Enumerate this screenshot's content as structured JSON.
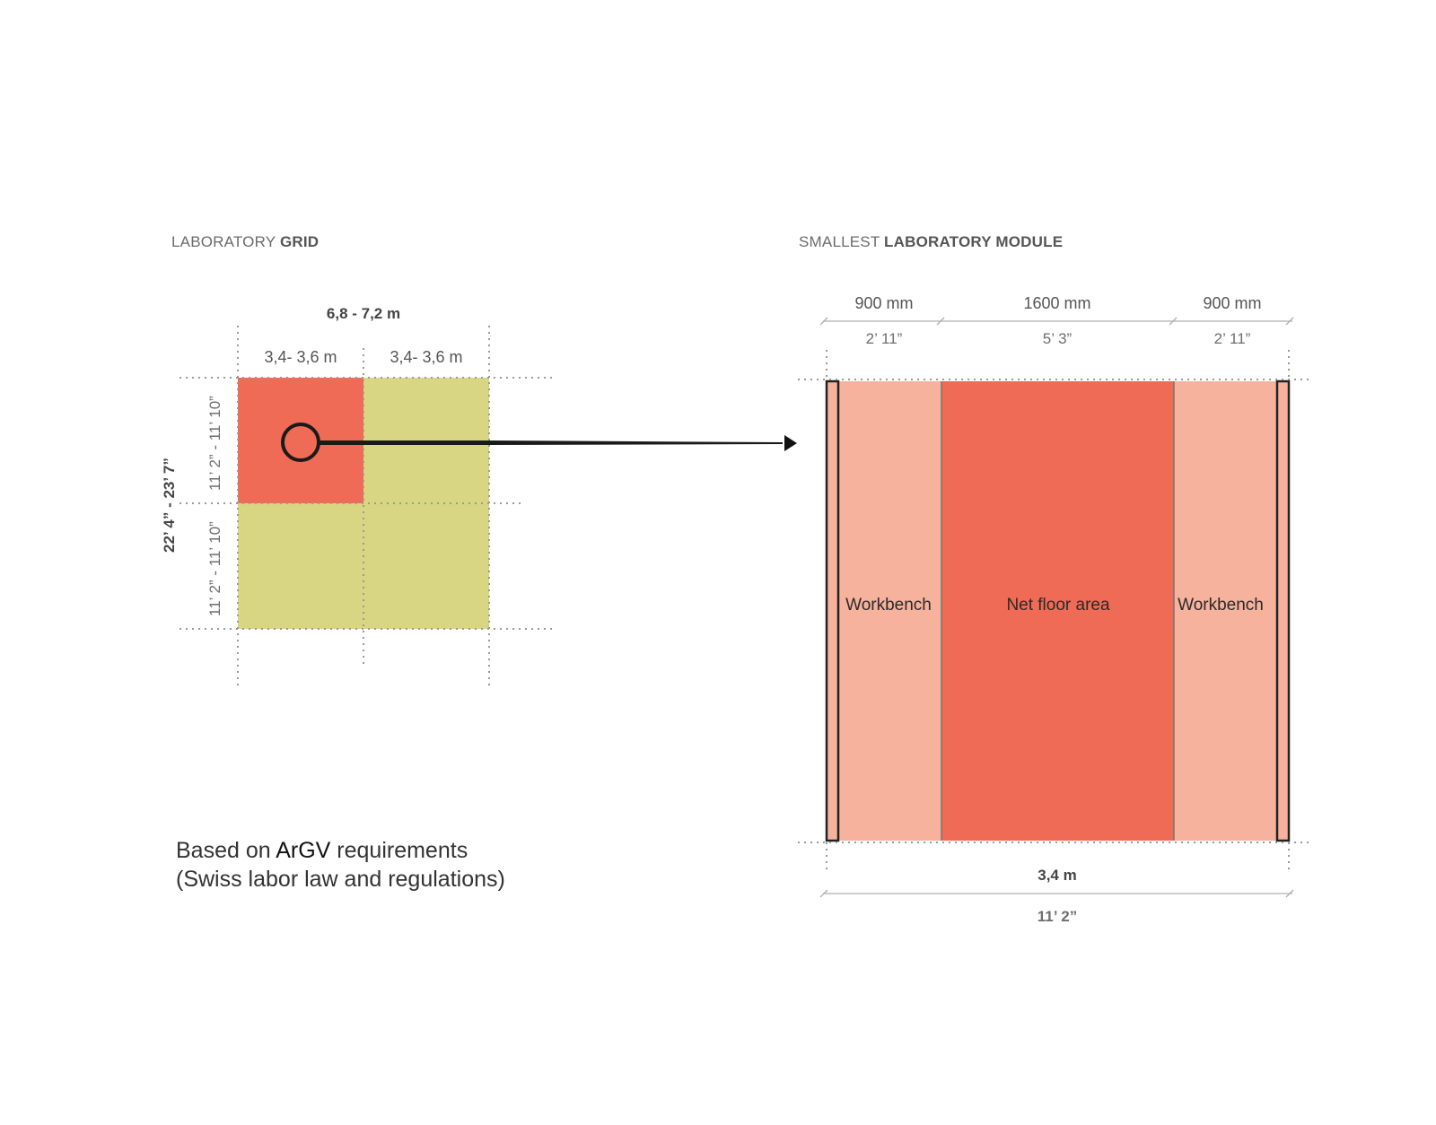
{
  "grid_section": {
    "title_light": "LABORATORY ",
    "title_bold": "GRID",
    "total_width": "6,8  - 7,2 m",
    "column_widths": [
      "3,4- 3,6 m",
      "3,4- 3,6 m"
    ],
    "total_height_imperial": "22’ 4” - 23’ 7”",
    "row_heights_imperial": [
      "11’ 2” - 11’ 10”",
      "11’ 2” - 11’ 10”"
    ],
    "colors": {
      "highlight_cell": "#EF6B55",
      "other_cells": "#D8D583"
    }
  },
  "module_section": {
    "title_light": "SMALLEST ",
    "title_bold": "LABORATORY MODULE",
    "zones": [
      {
        "label": "Workbench",
        "metric": "900 mm",
        "imperial": "2’ 11”"
      },
      {
        "label": "Net floor area",
        "metric": "1600 mm",
        "imperial": "5’ 3”"
      },
      {
        "label": "Workbench",
        "metric": "900 mm",
        "imperial": "2’ 11”"
      }
    ],
    "total_width": "3,4 m",
    "total_width_imperial": "11’ 2”",
    "colors": {
      "workbench": "#F6B29D",
      "net_floor_area": "#EF6B55"
    }
  },
  "note": {
    "line1_prefix": "Based on ",
    "line1_emphasis": "ArGV",
    "line1_suffix": " requirements",
    "line2": "(Swiss labor law and regulations)"
  }
}
